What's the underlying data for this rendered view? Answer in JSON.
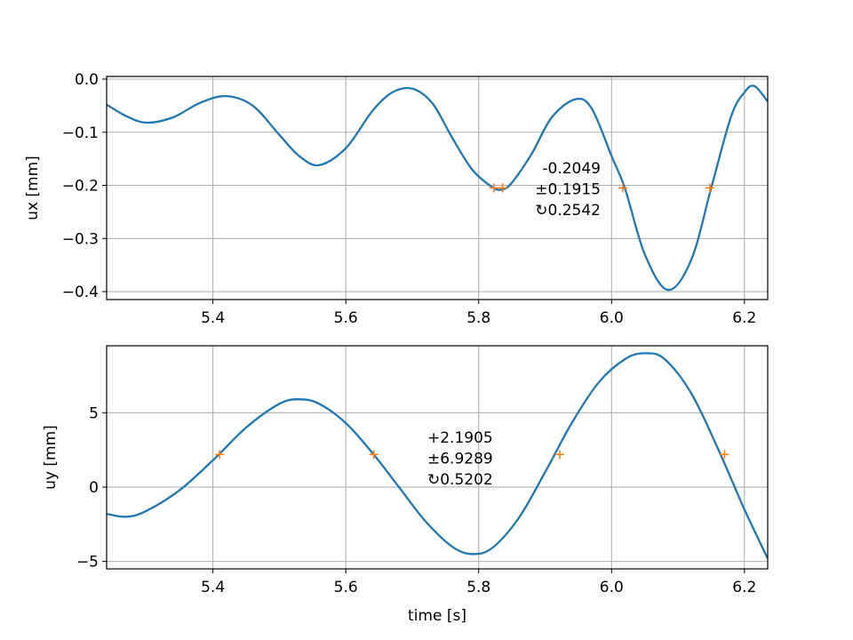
{
  "colors": {
    "line": "#1f77b4",
    "marker": "#ff7f0e",
    "grid": "#b0b0b0"
  },
  "chart_data": [
    {
      "type": "line",
      "xlabel": "",
      "ylabel": "ux [mm]",
      "xlim": [
        5.24,
        6.235
      ],
      "ylim": [
        -0.415,
        0.005
      ],
      "xticks": [
        5.4,
        5.6,
        5.8,
        6.0,
        6.2
      ],
      "xtick_labels": [
        "5.4",
        "5.6",
        "5.8",
        "6.0",
        "6.2"
      ],
      "yticks": [
        0.0,
        -0.1,
        -0.2,
        -0.3,
        -0.4
      ],
      "ytick_labels": [
        "0.0",
        "−0.1",
        "−0.2",
        "−0.3",
        "−0.4"
      ],
      "grid": true,
      "series": [
        {
          "x": [
            5.24,
            5.27,
            5.3,
            5.34,
            5.38,
            5.42,
            5.46,
            5.5,
            5.53,
            5.56,
            5.6,
            5.64,
            5.67,
            5.7,
            5.73,
            5.76,
            5.79,
            5.82,
            5.835,
            5.85,
            5.88,
            5.91,
            5.945,
            5.97,
            6.0,
            6.02,
            6.05,
            6.085,
            6.12,
            6.15,
            6.18,
            6.2,
            6.215,
            6.235
          ],
          "y": [
            -0.048,
            -0.07,
            -0.082,
            -0.072,
            -0.045,
            -0.032,
            -0.05,
            -0.105,
            -0.145,
            -0.162,
            -0.13,
            -0.06,
            -0.025,
            -0.018,
            -0.045,
            -0.11,
            -0.17,
            -0.203,
            -0.208,
            -0.195,
            -0.14,
            -0.072,
            -0.038,
            -0.055,
            -0.145,
            -0.205,
            -0.33,
            -0.397,
            -0.34,
            -0.205,
            -0.07,
            -0.025,
            -0.013,
            -0.042
          ]
        }
      ],
      "markers": {
        "x": [
          5.823,
          5.836,
          6.017,
          6.148
        ],
        "y": [
          -0.2049,
          -0.2049,
          -0.2049,
          -0.2049
        ]
      },
      "annotation": [
        "-0.2049",
        "±0.1915",
        "↻0.2542"
      ]
    },
    {
      "type": "line",
      "xlabel": "time [s]",
      "ylabel": "uy [mm]",
      "xlim": [
        5.24,
        6.235
      ],
      "ylim": [
        -5.5,
        9.5
      ],
      "xticks": [
        5.4,
        5.6,
        5.8,
        6.0,
        6.2
      ],
      "xtick_labels": [
        "5.4",
        "5.6",
        "5.8",
        "6.0",
        "6.2"
      ],
      "yticks": [
        5,
        0,
        -5
      ],
      "ytick_labels": [
        "5",
        "0",
        "−5"
      ],
      "grid": true,
      "series": [
        {
          "x": [
            5.24,
            5.27,
            5.3,
            5.35,
            5.4,
            5.45,
            5.5,
            5.53,
            5.56,
            5.6,
            5.64,
            5.68,
            5.72,
            5.76,
            5.79,
            5.82,
            5.86,
            5.9,
            5.94,
            5.98,
            6.02,
            6.05,
            6.08,
            6.12,
            6.16,
            6.2,
            6.235
          ],
          "y": [
            -1.8,
            -2.0,
            -1.6,
            -0.2,
            1.8,
            4.0,
            5.6,
            5.9,
            5.6,
            4.3,
            2.3,
            0.0,
            -2.3,
            -4.0,
            -4.5,
            -4.1,
            -2.1,
            1.0,
            4.3,
            7.0,
            8.6,
            9.0,
            8.6,
            6.3,
            2.6,
            -1.5,
            -4.8
          ]
        }
      ],
      "markers": {
        "x": [
          5.41,
          5.642,
          5.922,
          6.17
        ],
        "y": [
          2.19,
          2.19,
          2.19,
          2.19
        ]
      },
      "annotation": [
        "+2.1905",
        "±6.9289",
        "↻0.5202"
      ]
    }
  ]
}
